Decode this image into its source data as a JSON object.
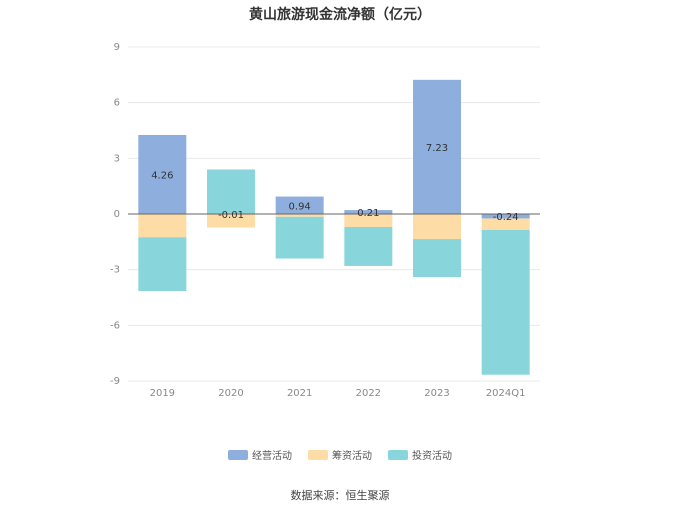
{
  "chart_data": {
    "type": "bar",
    "stacked": true,
    "title": "黄山旅游现金流净额（亿元）",
    "xlabel": "",
    "ylabel": "",
    "categories": [
      "2019",
      "2020",
      "2021",
      "2022",
      "2023",
      "2024Q1"
    ],
    "ylim": [
      -9,
      9
    ],
    "yticks": [
      9,
      6,
      3,
      0,
      -3,
      -6,
      -9
    ],
    "grid": true,
    "legend_position": "bottom",
    "series": [
      {
        "name": "经营活动",
        "color": "#8eaedd",
        "values": [
          4.26,
          -0.01,
          0.94,
          0.21,
          7.23,
          -0.24
        ],
        "labels": [
          "4.26",
          "-0.01",
          "0.94",
          "0.21",
          "7.23",
          "-0.24"
        ]
      },
      {
        "name": "筹资活动",
        "color": "#fddca6",
        "values": [
          -1.25,
          -0.72,
          -0.15,
          -0.7,
          -1.35,
          -0.62
        ]
      },
      {
        "name": "投资活动",
        "color": "#88d6db",
        "values": [
          -2.9,
          2.4,
          -2.25,
          -2.1,
          -2.05,
          -7.8
        ]
      }
    ],
    "source": "数据来源：恒生聚源"
  }
}
